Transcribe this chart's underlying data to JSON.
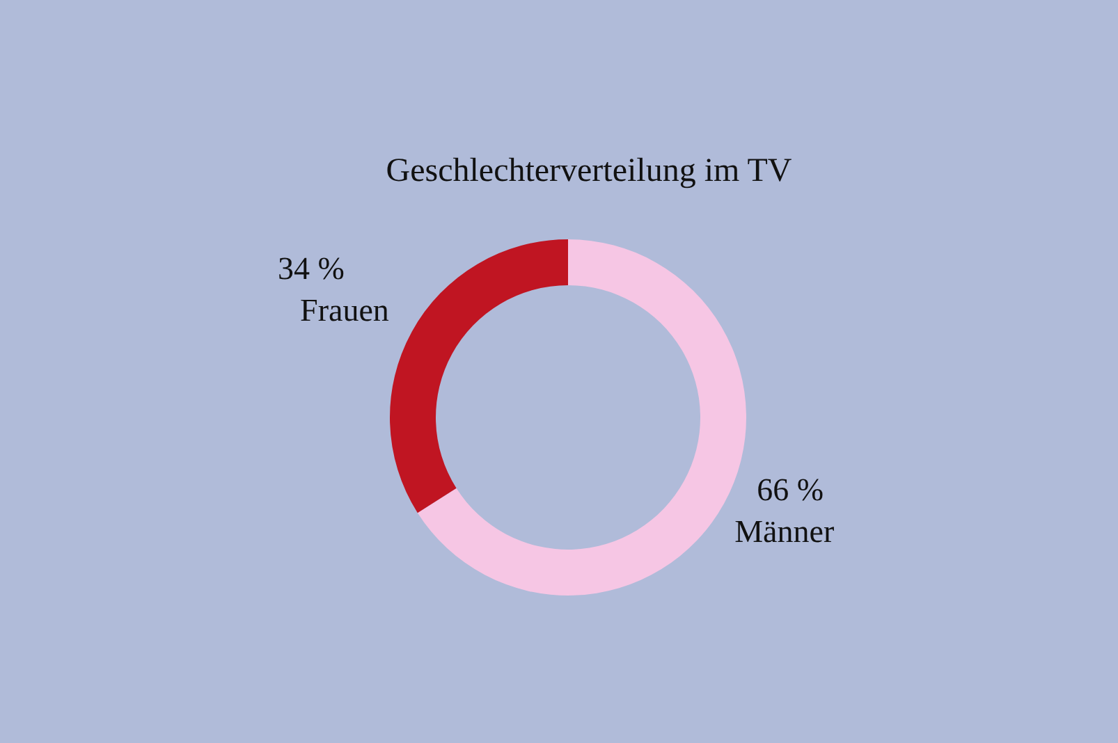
{
  "chart_data": {
    "type": "donut",
    "title": "Geschlechterverteilung im TV",
    "categories": [
      "Männer",
      "Frauen"
    ],
    "values": [
      66,
      34
    ],
    "colors": [
      "#f6c6e4",
      "#c01522"
    ],
    "value_labels": [
      "66 %",
      "34 %"
    ],
    "legend": false
  }
}
